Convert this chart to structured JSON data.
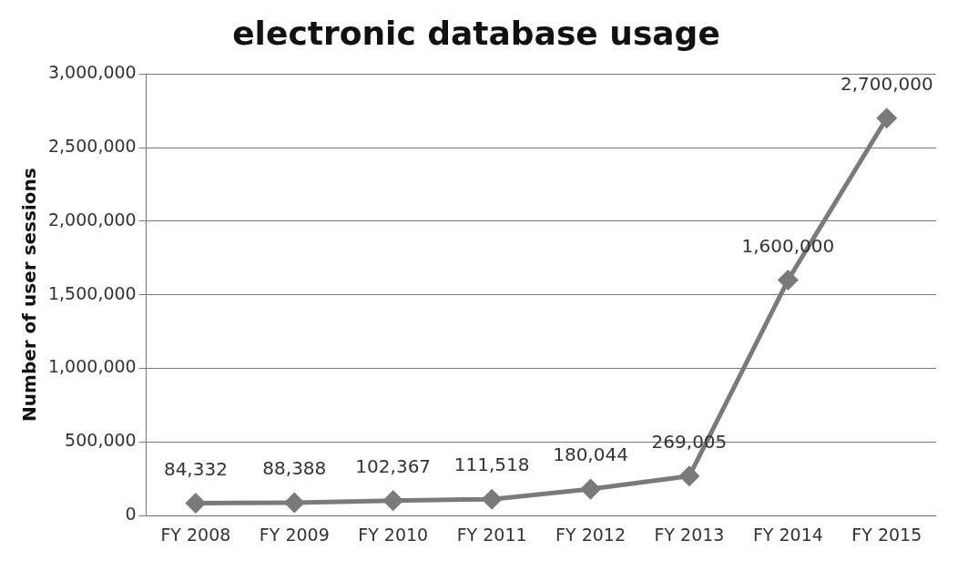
{
  "chart_data": {
    "type": "line",
    "title": "electronic database usage",
    "ylabel": "Number of user sessions",
    "categories": [
      "FY 2008",
      "FY 2009",
      "FY 2010",
      "FY 2011",
      "FY 2012",
      "FY 2013",
      "FY 2014",
      "FY 2015"
    ],
    "series": [
      {
        "color": "#7a7a7a",
        "values": [
          84332,
          88388,
          102367,
          111518,
          180044,
          269005,
          1600000,
          2700000
        ],
        "value_labels": [
          "84,332",
          "88,388",
          "102,367",
          "111,518",
          "180,044",
          "269,005",
          "1,600,000",
          "2,700,000"
        ]
      }
    ],
    "ylim": [
      0,
      3000000
    ],
    "yticks": [
      {
        "value": 0,
        "label": "0"
      },
      {
        "value": 500000,
        "label": "500,000"
      },
      {
        "value": 1000000,
        "label": "1,000,000"
      },
      {
        "value": 1500000,
        "label": "1,500,000"
      },
      {
        "value": 2000000,
        "label": "2,000,000"
      },
      {
        "value": 2500000,
        "label": "2,500,000"
      },
      {
        "value": 3000000,
        "label": "3,000,000"
      }
    ],
    "grid": "y",
    "legend": false,
    "marker": "diamond",
    "line_style": "solid"
  }
}
